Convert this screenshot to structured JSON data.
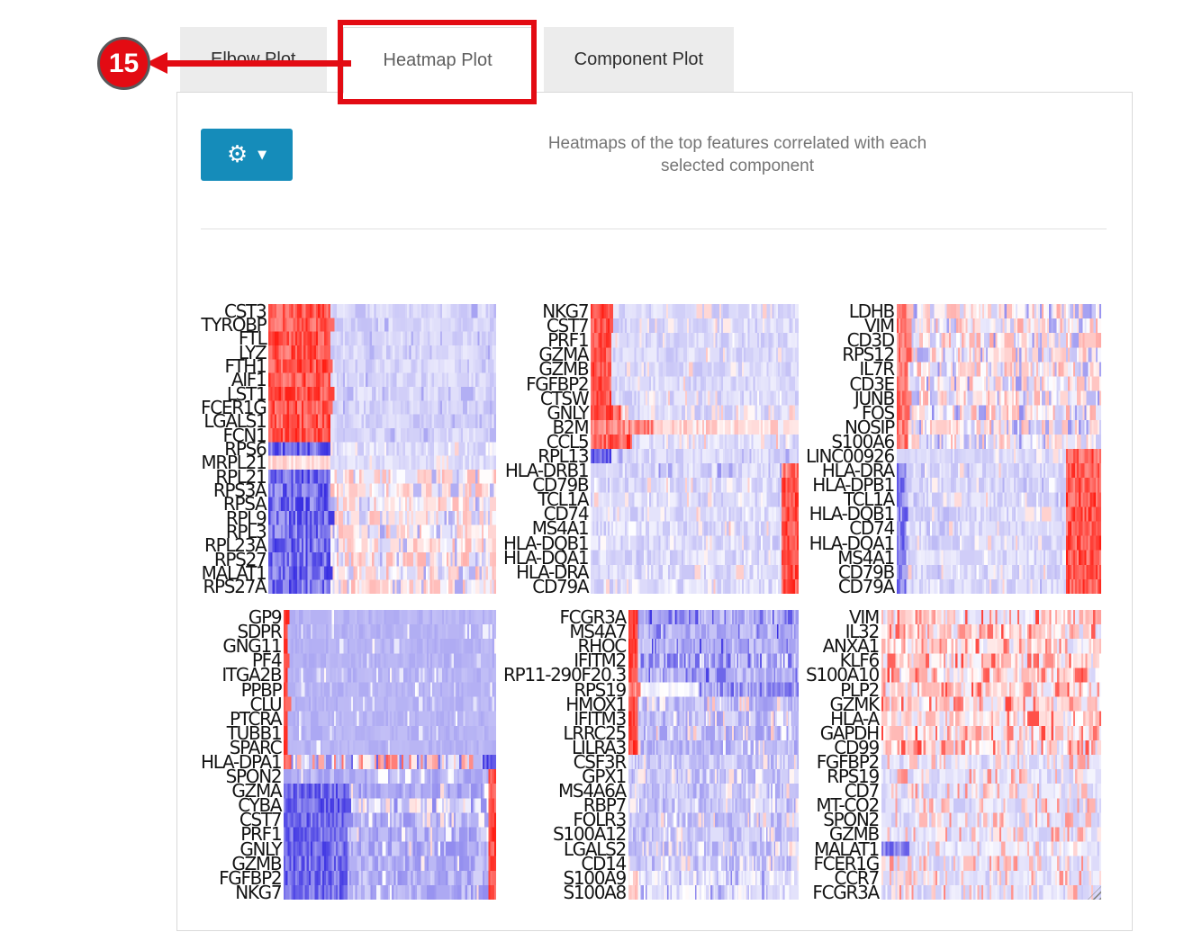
{
  "annotation": {
    "step_badge": "15",
    "badge_color": "#e30b13",
    "arrow_color": "#e30b13"
  },
  "tabs": [
    {
      "label": "Elbow Plot",
      "active": false
    },
    {
      "label": "Heatmap Plot",
      "active": true,
      "highlighted": true
    },
    {
      "label": "Component Plot",
      "active": false
    }
  ],
  "toolbar": {
    "gear_button": {
      "icon": "gear-icon",
      "caret": "caret-down-icon",
      "color": "#158cba",
      "gear_glyph": "⚙",
      "caret_glyph": "▼"
    }
  },
  "plot": {
    "title_line1": "Heatmaps of the top features correlated with each",
    "title_line2": "selected component"
  },
  "heatmap_style": {
    "positive_color": "#ff1e14",
    "mid_color": "#ffffff",
    "negative_color": "#372de1",
    "n_columns": 110
  },
  "chart_data": [
    {
      "type": "heatmap",
      "genes": [
        "CST3",
        "TYROBP",
        "FTL",
        "LYZ",
        "FTH1",
        "AIF1",
        "LST1",
        "FCER1G",
        "LGALS1",
        "FCN1",
        "RPS6",
        "MRPL21",
        "RPL21",
        "RPS3A",
        "RPSA",
        "RPL9",
        "RPL3",
        "RPL23A",
        "RPS27",
        "MALAT1",
        "RPS27A"
      ],
      "groups": [
        {
          "rows": [
            0,
            9
          ],
          "base": [
            -0.3,
            -0.1
          ],
          "left": [
            0.27,
            0.5,
            1.0
          ],
          "speckle": [
            0.05,
            -0.45,
            -0.3
          ]
        },
        {
          "rows": [
            10,
            10
          ],
          "base": [
            -0.28,
            -0.05
          ],
          "left": [
            0.27,
            -1.0,
            -0.45
          ],
          "speckle": [
            0.12,
            0.0,
            0.25
          ]
        },
        {
          "rows": [
            11,
            11
          ],
          "base": [
            -0.25,
            -0.08
          ],
          "left": [
            0.27,
            0.02,
            0.3
          ],
          "speckle": [
            0.08,
            0.1,
            0.3
          ]
        },
        {
          "rows": [
            12,
            20
          ],
          "base": [
            -0.2,
            0.36
          ],
          "left": [
            0.27,
            -1.0,
            -0.4
          ],
          "speckle": [
            0.1,
            -0.45,
            -0.2
          ]
        }
      ]
    },
    {
      "type": "heatmap",
      "genes": [
        "NKG7",
        "CST7",
        "PRF1",
        "GZMA",
        "GZMB",
        "FGFBP2",
        "CTSW",
        "GNLY",
        "B2M",
        "CCL5",
        "RPL13",
        "HLA-DRB1",
        "CD79B",
        "TCL1A",
        "CD74",
        "MS4A1",
        "HLA-DQB1",
        "HLA-DQA1",
        "HLA-DRA",
        "CD79A"
      ],
      "groups": [
        {
          "rows": [
            0,
            6
          ],
          "base": [
            -0.3,
            -0.08
          ],
          "left": [
            0.1,
            0.55,
            1.0
          ],
          "speckle": [
            0.06,
            0.0,
            0.25
          ]
        },
        {
          "rows": [
            7,
            7
          ],
          "base": [
            -0.3,
            -0.05
          ],
          "left": [
            0.14,
            0.5,
            1.0
          ],
          "speckle": [
            0.08,
            0.0,
            0.3
          ]
        },
        {
          "rows": [
            8,
            8
          ],
          "base": [
            0.02,
            0.35
          ],
          "left": [
            0.3,
            0.3,
            0.75
          ],
          "speckle": [
            0.1,
            -0.15,
            0.0
          ]
        },
        {
          "rows": [
            9,
            9
          ],
          "base": [
            -0.28,
            -0.05
          ],
          "left": [
            0.2,
            0.4,
            1.0
          ],
          "speckle": [
            0.12,
            0.0,
            0.35
          ]
        },
        {
          "rows": [
            10,
            10
          ],
          "base": [
            -0.3,
            -0.08
          ],
          "left": [
            0.1,
            -1.0,
            -0.5
          ],
          "speckle": [
            0.06,
            -0.5,
            -0.3
          ]
        },
        {
          "rows": [
            11,
            11
          ],
          "base": [
            -0.3,
            -0.05
          ],
          "right": [
            0.09,
            0.4,
            0.9
          ],
          "speckle": [
            0.12,
            -0.6,
            -0.25
          ]
        },
        {
          "rows": [
            12,
            19
          ],
          "base": [
            -0.3,
            -0.05
          ],
          "right": [
            0.09,
            0.55,
            1.0
          ],
          "speckle": [
            0.14,
            -0.35,
            0.3
          ]
        }
      ]
    },
    {
      "type": "heatmap",
      "genes": [
        "LDHB",
        "VIM",
        "CD3D",
        "RPS12",
        "IL7R",
        "CD3E",
        "JUNB",
        "FOS",
        "NOSIP",
        "S100A6",
        "LINC00926",
        "HLA-DRA",
        "HLA-DPB1",
        "TCL1A",
        "HLA-DQB1",
        "CD74",
        "HLA-DQA1",
        "MS4A1",
        "CD79B",
        "CD79A"
      ],
      "groups": [
        {
          "rows": [
            0,
            9
          ],
          "base": [
            -0.3,
            0.4
          ],
          "left": [
            0.05,
            0.35,
            0.85
          ],
          "speckle": [
            0.12,
            -0.55,
            -0.25
          ]
        },
        {
          "rows": [
            10,
            10
          ],
          "base": [
            -0.28,
            -0.1
          ],
          "right": [
            0.18,
            0.45,
            0.95
          ],
          "speckle": [
            0.06,
            0.0,
            0.2
          ]
        },
        {
          "rows": [
            11,
            19
          ],
          "base": [
            -0.3,
            -0.07
          ],
          "left": [
            0.04,
            -0.85,
            -0.35
          ],
          "right": [
            0.18,
            0.5,
            1.0
          ],
          "speckle": [
            0.1,
            -0.4,
            0.25
          ]
        }
      ]
    },
    {
      "type": "heatmap",
      "genes": [
        "GP9",
        "SDPR",
        "GNG11",
        "PF4",
        "ITGA2B",
        "PPBP",
        "CLU",
        "PTCRA",
        "TUBB1",
        "SPARC",
        "HLA-DPA1",
        "SPON2",
        "GZMA",
        "CYBA",
        "CST7",
        "PRF1",
        "GNLY",
        "GZMB",
        "FGFBP2",
        "NKG7"
      ],
      "groups": [
        {
          "rows": [
            0,
            9
          ],
          "base": [
            -0.42,
            -0.3
          ],
          "left": [
            0.013,
            0.65,
            1.0
          ],
          "speckle": [
            0.05,
            -0.2,
            0.05
          ]
        },
        {
          "rows": [
            10,
            10
          ],
          "base": [
            -0.8,
            0.75
          ],
          "right": [
            0.07,
            -1.0,
            -0.55
          ]
        },
        {
          "rows": [
            11,
            11
          ],
          "base": [
            -0.5,
            -0.25
          ],
          "right": [
            0.04,
            0.55,
            1.0
          ],
          "speckle": [
            0.08,
            -0.05,
            0.25
          ]
        },
        {
          "rows": [
            12,
            12
          ],
          "base": [
            -0.55,
            -0.25
          ],
          "left": [
            0.3,
            -0.95,
            -0.45
          ],
          "right": [
            0.04,
            0.55,
            1.0
          ],
          "speckle": [
            0.06,
            -0.05,
            0.2
          ]
        },
        {
          "rows": [
            13,
            13
          ],
          "base": [
            -0.35,
            0.25
          ],
          "left": [
            0.3,
            -1.0,
            -0.5
          ],
          "right": [
            0.04,
            0.5,
            0.9
          ],
          "speckle": [
            0.1,
            -0.6,
            -0.2
          ]
        },
        {
          "rows": [
            14,
            19
          ],
          "base": [
            -0.55,
            -0.2
          ],
          "left": [
            0.3,
            -0.95,
            -0.45
          ],
          "right": [
            0.04,
            0.6,
            1.0
          ],
          "speckle": [
            0.07,
            -0.05,
            0.2
          ]
        }
      ]
    },
    {
      "type": "heatmap",
      "genes": [
        "FCGR3A",
        "MS4A7",
        "RHOC",
        "IFITM2",
        "RP11-290F20.3",
        "RPS19",
        "HMOX1",
        "IFITM3",
        "LRRC25",
        "LILRA3",
        "CSF3R",
        "GPX1",
        "MS4A6A",
        "RBP7",
        "FOLR3",
        "S100A12",
        "LGALS2",
        "CD14",
        "S100A9",
        "S100A8"
      ],
      "groups": [
        {
          "rows": [
            0,
            2
          ],
          "base": [
            -0.55,
            -0.18
          ],
          "left": [
            0.05,
            0.7,
            1.0
          ],
          "speckle": [
            0.1,
            -1.0,
            -0.6
          ]
        },
        {
          "rows": [
            3,
            3
          ],
          "base": [
            -0.8,
            -0.05
          ],
          "left": [
            0.05,
            0.65,
            1.0
          ]
        },
        {
          "rows": [
            4,
            4
          ],
          "base": [
            -0.5,
            -0.18
          ],
          "left": [
            0.05,
            0.6,
            1.0
          ],
          "speckle": [
            0.08,
            -0.9,
            -0.6
          ]
        },
        {
          "rows": [
            5,
            5
          ],
          "base": [
            -0.15,
            0.02
          ],
          "left": [
            0.05,
            0.3,
            0.7
          ],
          "right": [
            0.6,
            -0.8,
            -0.2
          ],
          "speckle": [
            0.15,
            -0.1,
            0.05
          ]
        },
        {
          "rows": [
            6,
            9
          ],
          "base": [
            -0.5,
            -0.15
          ],
          "left": [
            0.05,
            0.65,
            1.0
          ],
          "speckle": [
            0.1,
            -0.05,
            0.3
          ]
        },
        {
          "rows": [
            10,
            17
          ],
          "base": [
            -0.45,
            -0.12
          ],
          "speckle": [
            0.1,
            -0.05,
            0.25
          ]
        },
        {
          "rows": [
            18,
            19
          ],
          "base": [
            -0.25,
            0.05
          ],
          "left": [
            0.05,
            0.0,
            0.35
          ],
          "speckle": [
            0.12,
            -0.6,
            -0.3
          ]
        }
      ]
    },
    {
      "type": "heatmap",
      "genes": [
        "VIM",
        "IL32",
        "ANXA1",
        "KLF6",
        "S100A10",
        "PLP2",
        "GZMK",
        "HLA-A",
        "GAPDH",
        "CD99",
        "FGFBP2",
        "RPS19",
        "CD7",
        "MT-CO2",
        "SPON2",
        "GZMB",
        "MALAT1",
        "FCER1G",
        "CCR7",
        "FCGR3A"
      ],
      "groups": [
        {
          "rows": [
            0,
            9
          ],
          "base": [
            -0.22,
            0.4
          ],
          "speckle": [
            0.12,
            0.42,
            0.85
          ]
        },
        {
          "rows": [
            10,
            15
          ],
          "base": [
            -0.28,
            -0.04
          ],
          "speckle": [
            0.2,
            0.08,
            0.55
          ]
        },
        {
          "rows": [
            16,
            16
          ],
          "base": [
            -0.26,
            0.0
          ],
          "left": [
            0.12,
            -0.85,
            -0.4
          ],
          "speckle": [
            0.12,
            0.1,
            0.45
          ]
        },
        {
          "rows": [
            17,
            19
          ],
          "base": [
            -0.28,
            -0.04
          ],
          "speckle": [
            0.2,
            0.08,
            0.55
          ]
        }
      ]
    }
  ]
}
